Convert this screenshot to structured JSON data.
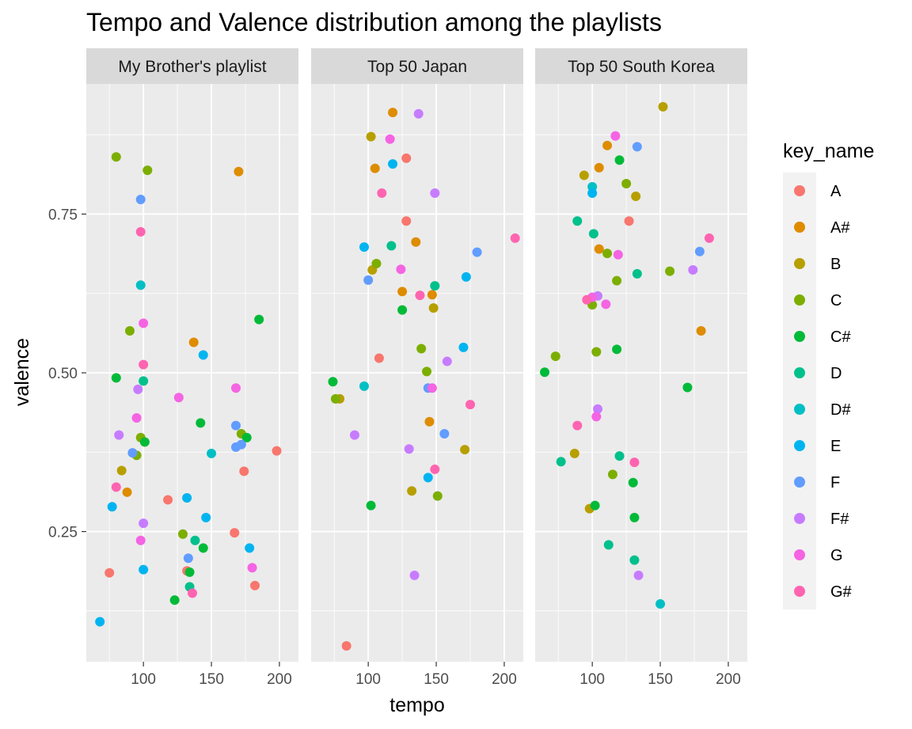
{
  "chart_data": {
    "type": "scatter",
    "title": "Tempo and Valence distribution among the playlists",
    "xlabel": "tempo",
    "ylabel": "valence",
    "xlim": [
      58,
      214
    ],
    "ylim": [
      0.045,
      0.955
    ],
    "x_ticks": [
      100,
      150,
      200
    ],
    "x_tick_labels": [
      "100",
      "150",
      "200"
    ],
    "y_ticks": [
      0.25,
      0.5,
      0.75
    ],
    "y_tick_labels": [
      "0.25",
      "0.50",
      "0.75"
    ],
    "grid": true,
    "legend": {
      "title": "key_name",
      "position": "right",
      "entries": [
        "A",
        "A#",
        "B",
        "C",
        "C#",
        "D",
        "D#",
        "E",
        "F",
        "F#",
        "G",
        "G#"
      ]
    },
    "colors": {
      "A": "#F8766D",
      "A#": "#DE8C00",
      "B": "#B79F00",
      "C": "#7CAE00",
      "C#": "#00BA38",
      "D": "#00C08B",
      "D#": "#00BFC4",
      "E": "#00B4F0",
      "F": "#619CFF",
      "F#": "#C77CFF",
      "G": "#F564E3",
      "G#": "#FF64B0"
    },
    "panels": [
      {
        "name": "My Brother's playlist",
        "points": [
          {
            "x": 75,
            "y": 0.185,
            "key": "A"
          },
          {
            "x": 118,
            "y": 0.3,
            "key": "A"
          },
          {
            "x": 132,
            "y": 0.188,
            "key": "A"
          },
          {
            "x": 167,
            "y": 0.248,
            "key": "A"
          },
          {
            "x": 174,
            "y": 0.345,
            "key": "A"
          },
          {
            "x": 182,
            "y": 0.165,
            "key": "A"
          },
          {
            "x": 198,
            "y": 0.377,
            "key": "A"
          },
          {
            "x": 88,
            "y": 0.312,
            "key": "A#"
          },
          {
            "x": 137,
            "y": 0.548,
            "key": "A#"
          },
          {
            "x": 170,
            "y": 0.817,
            "key": "A#"
          },
          {
            "x": 84,
            "y": 0.346,
            "key": "B"
          },
          {
            "x": 80,
            "y": 0.84,
            "key": "C"
          },
          {
            "x": 90,
            "y": 0.566,
            "key": "C"
          },
          {
            "x": 95,
            "y": 0.37,
            "key": "C"
          },
          {
            "x": 98,
            "y": 0.398,
            "key": "C"
          },
          {
            "x": 103,
            "y": 0.819,
            "key": "C"
          },
          {
            "x": 129,
            "y": 0.246,
            "key": "C"
          },
          {
            "x": 172,
            "y": 0.404,
            "key": "C"
          },
          {
            "x": 80,
            "y": 0.492,
            "key": "C#"
          },
          {
            "x": 101,
            "y": 0.391,
            "key": "C#"
          },
          {
            "x": 123,
            "y": 0.142,
            "key": "C#"
          },
          {
            "x": 134,
            "y": 0.186,
            "key": "C#"
          },
          {
            "x": 142,
            "y": 0.421,
            "key": "C#"
          },
          {
            "x": 144,
            "y": 0.224,
            "key": "C#"
          },
          {
            "x": 176,
            "y": 0.398,
            "key": "C#"
          },
          {
            "x": 185,
            "y": 0.584,
            "key": "C#"
          },
          {
            "x": 100,
            "y": 0.487,
            "key": "D"
          },
          {
            "x": 134,
            "y": 0.163,
            "key": "D"
          },
          {
            "x": 138,
            "y": 0.236,
            "key": "D"
          },
          {
            "x": 98,
            "y": 0.638,
            "key": "D#"
          },
          {
            "x": 150,
            "y": 0.373,
            "key": "D#"
          },
          {
            "x": 68,
            "y": 0.108,
            "key": "E"
          },
          {
            "x": 77,
            "y": 0.289,
            "key": "E"
          },
          {
            "x": 100,
            "y": 0.19,
            "key": "E"
          },
          {
            "x": 132,
            "y": 0.303,
            "key": "E"
          },
          {
            "x": 144,
            "y": 0.528,
            "key": "E"
          },
          {
            "x": 146,
            "y": 0.272,
            "key": "E"
          },
          {
            "x": 178,
            "y": 0.224,
            "key": "E"
          },
          {
            "x": 92,
            "y": 0.374,
            "key": "F"
          },
          {
            "x": 98,
            "y": 0.773,
            "key": "F"
          },
          {
            "x": 133,
            "y": 0.208,
            "key": "F"
          },
          {
            "x": 168,
            "y": 0.417,
            "key": "F"
          },
          {
            "x": 168,
            "y": 0.383,
            "key": "F"
          },
          {
            "x": 172,
            "y": 0.387,
            "key": "F"
          },
          {
            "x": 82,
            "y": 0.402,
            "key": "F#"
          },
          {
            "x": 96,
            "y": 0.474,
            "key": "F#"
          },
          {
            "x": 100,
            "y": 0.263,
            "key": "F#"
          },
          {
            "x": 95,
            "y": 0.429,
            "key": "G"
          },
          {
            "x": 98,
            "y": 0.236,
            "key": "G"
          },
          {
            "x": 100,
            "y": 0.578,
            "key": "G"
          },
          {
            "x": 126,
            "y": 0.461,
            "key": "G"
          },
          {
            "x": 168,
            "y": 0.476,
            "key": "G"
          },
          {
            "x": 180,
            "y": 0.193,
            "key": "G"
          },
          {
            "x": 80,
            "y": 0.32,
            "key": "G#"
          },
          {
            "x": 98,
            "y": 0.722,
            "key": "G#"
          },
          {
            "x": 100,
            "y": 0.513,
            "key": "G#"
          },
          {
            "x": 136,
            "y": 0.153,
            "key": "G#"
          }
        ]
      },
      {
        "name": "Top 50 Japan",
        "points": [
          {
            "x": 84,
            "y": 0.07,
            "key": "A"
          },
          {
            "x": 108,
            "y": 0.523,
            "key": "A"
          },
          {
            "x": 128,
            "y": 0.838,
            "key": "A"
          },
          {
            "x": 128,
            "y": 0.739,
            "key": "A"
          },
          {
            "x": 105,
            "y": 0.822,
            "key": "A#"
          },
          {
            "x": 118,
            "y": 0.91,
            "key": "A#"
          },
          {
            "x": 125,
            "y": 0.628,
            "key": "A#"
          },
          {
            "x": 135,
            "y": 0.706,
            "key": "A#"
          },
          {
            "x": 145,
            "y": 0.423,
            "key": "A#"
          },
          {
            "x": 147,
            "y": 0.623,
            "key": "A#"
          },
          {
            "x": 79,
            "y": 0.459,
            "key": "B"
          },
          {
            "x": 102,
            "y": 0.872,
            "key": "B"
          },
          {
            "x": 103,
            "y": 0.662,
            "key": "B"
          },
          {
            "x": 132,
            "y": 0.314,
            "key": "B"
          },
          {
            "x": 148,
            "y": 0.602,
            "key": "B"
          },
          {
            "x": 171,
            "y": 0.379,
            "key": "B"
          },
          {
            "x": 76,
            "y": 0.459,
            "key": "C"
          },
          {
            "x": 106,
            "y": 0.672,
            "key": "C"
          },
          {
            "x": 139,
            "y": 0.538,
            "key": "C"
          },
          {
            "x": 143,
            "y": 0.502,
            "key": "C"
          },
          {
            "x": 151,
            "y": 0.306,
            "key": "C"
          },
          {
            "x": 74,
            "y": 0.486,
            "key": "C#"
          },
          {
            "x": 102,
            "y": 0.291,
            "key": "C#"
          },
          {
            "x": 125,
            "y": 0.599,
            "key": "C#"
          },
          {
            "x": 117,
            "y": 0.7,
            "key": "D"
          },
          {
            "x": 149,
            "y": 0.637,
            "key": "D"
          },
          {
            "x": 97,
            "y": 0.479,
            "key": "D#"
          },
          {
            "x": 97,
            "y": 0.698,
            "key": "E"
          },
          {
            "x": 118,
            "y": 0.829,
            "key": "E"
          },
          {
            "x": 144,
            "y": 0.335,
            "key": "E"
          },
          {
            "x": 170,
            "y": 0.54,
            "key": "E"
          },
          {
            "x": 172,
            "y": 0.651,
            "key": "E"
          },
          {
            "x": 100,
            "y": 0.646,
            "key": "F"
          },
          {
            "x": 144,
            "y": 0.476,
            "key": "F"
          },
          {
            "x": 156,
            "y": 0.404,
            "key": "F"
          },
          {
            "x": 180,
            "y": 0.69,
            "key": "F"
          },
          {
            "x": 90,
            "y": 0.402,
            "key": "F#"
          },
          {
            "x": 130,
            "y": 0.38,
            "key": "F#"
          },
          {
            "x": 134,
            "y": 0.181,
            "key": "F#"
          },
          {
            "x": 137,
            "y": 0.908,
            "key": "F#"
          },
          {
            "x": 149,
            "y": 0.783,
            "key": "F#"
          },
          {
            "x": 158,
            "y": 0.518,
            "key": "F#"
          },
          {
            "x": 116,
            "y": 0.868,
            "key": "G"
          },
          {
            "x": 124,
            "y": 0.663,
            "key": "G"
          },
          {
            "x": 147,
            "y": 0.476,
            "key": "G"
          },
          {
            "x": 110,
            "y": 0.783,
            "key": "G#"
          },
          {
            "x": 138,
            "y": 0.622,
            "key": "G#"
          },
          {
            "x": 149,
            "y": 0.348,
            "key": "G#"
          },
          {
            "x": 175,
            "y": 0.45,
            "key": "G#"
          },
          {
            "x": 208,
            "y": 0.712,
            "key": "G#"
          }
        ]
      },
      {
        "name": "Top 50 South Korea",
        "points": [
          {
            "x": 127,
            "y": 0.739,
            "key": "A"
          },
          {
            "x": 105,
            "y": 0.823,
            "key": "A#"
          },
          {
            "x": 105,
            "y": 0.695,
            "key": "A#"
          },
          {
            "x": 111,
            "y": 0.858,
            "key": "A#"
          },
          {
            "x": 180,
            "y": 0.566,
            "key": "A#"
          },
          {
            "x": 87,
            "y": 0.373,
            "key": "B"
          },
          {
            "x": 94,
            "y": 0.811,
            "key": "B"
          },
          {
            "x": 98,
            "y": 0.286,
            "key": "B"
          },
          {
            "x": 132,
            "y": 0.778,
            "key": "B"
          },
          {
            "x": 152,
            "y": 0.919,
            "key": "B"
          },
          {
            "x": 73,
            "y": 0.526,
            "key": "C"
          },
          {
            "x": 100,
            "y": 0.607,
            "key": "C"
          },
          {
            "x": 103,
            "y": 0.533,
            "key": "C"
          },
          {
            "x": 111,
            "y": 0.688,
            "key": "C"
          },
          {
            "x": 115,
            "y": 0.34,
            "key": "C"
          },
          {
            "x": 118,
            "y": 0.645,
            "key": "C"
          },
          {
            "x": 125,
            "y": 0.798,
            "key": "C"
          },
          {
            "x": 157,
            "y": 0.66,
            "key": "C"
          },
          {
            "x": 65,
            "y": 0.501,
            "key": "C#"
          },
          {
            "x": 102,
            "y": 0.291,
            "key": "C#"
          },
          {
            "x": 118,
            "y": 0.537,
            "key": "C#"
          },
          {
            "x": 120,
            "y": 0.835,
            "key": "C#"
          },
          {
            "x": 130,
            "y": 0.327,
            "key": "C#"
          },
          {
            "x": 131,
            "y": 0.272,
            "key": "C#"
          },
          {
            "x": 170,
            "y": 0.477,
            "key": "C#"
          },
          {
            "x": 77,
            "y": 0.36,
            "key": "D"
          },
          {
            "x": 89,
            "y": 0.739,
            "key": "D"
          },
          {
            "x": 101,
            "y": 0.719,
            "key": "D"
          },
          {
            "x": 112,
            "y": 0.229,
            "key": "D"
          },
          {
            "x": 120,
            "y": 0.369,
            "key": "D"
          },
          {
            "x": 131,
            "y": 0.205,
            "key": "D"
          },
          {
            "x": 133,
            "y": 0.656,
            "key": "D"
          },
          {
            "x": 100,
            "y": 0.793,
            "key": "D#"
          },
          {
            "x": 150,
            "y": 0.136,
            "key": "D#"
          },
          {
            "x": 100,
            "y": 0.783,
            "key": "E"
          },
          {
            "x": 133,
            "y": 0.856,
            "key": "F"
          },
          {
            "x": 179,
            "y": 0.691,
            "key": "F"
          },
          {
            "x": 104,
            "y": 0.621,
            "key": "F#"
          },
          {
            "x": 104,
            "y": 0.443,
            "key": "F#"
          },
          {
            "x": 134,
            "y": 0.181,
            "key": "F#"
          },
          {
            "x": 174,
            "y": 0.662,
            "key": "F#"
          },
          {
            "x": 100,
            "y": 0.619,
            "key": "G"
          },
          {
            "x": 103,
            "y": 0.431,
            "key": "G"
          },
          {
            "x": 110,
            "y": 0.608,
            "key": "G"
          },
          {
            "x": 117,
            "y": 0.873,
            "key": "G"
          },
          {
            "x": 119,
            "y": 0.686,
            "key": "G"
          },
          {
            "x": 89,
            "y": 0.417,
            "key": "G#"
          },
          {
            "x": 96,
            "y": 0.615,
            "key": "G#"
          },
          {
            "x": 131,
            "y": 0.359,
            "key": "G#"
          },
          {
            "x": 186,
            "y": 0.712,
            "key": "G#"
          }
        ]
      }
    ]
  }
}
